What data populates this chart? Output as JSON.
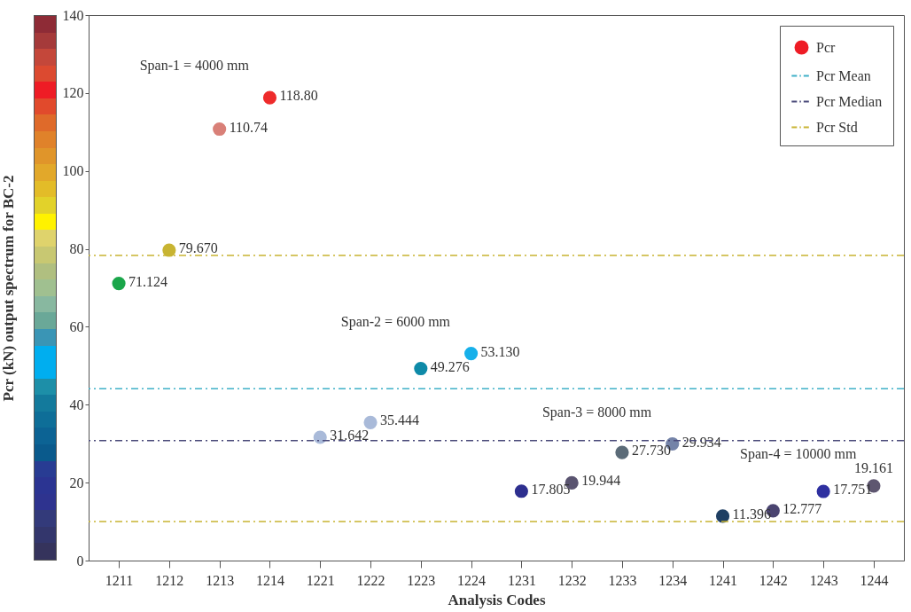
{
  "chart_data": {
    "type": "scatter",
    "xlabel": "Analysis Codes",
    "ylabel": "Pcr (kN)  output spectrum for BC-2",
    "categories": [
      "1211",
      "1212",
      "1213",
      "1214",
      "1221",
      "1222",
      "1223",
      "1224",
      "1231",
      "1232",
      "1233",
      "1234",
      "1241",
      "1242",
      "1243",
      "1244"
    ],
    "series": [
      {
        "name": "Pcr",
        "color": "#ee1c25",
        "values": [
          71.124,
          79.67,
          110.74,
          118.8,
          31.642,
          35.444,
          49.276,
          53.13,
          17.805,
          19.944,
          27.73,
          29.934,
          11.396,
          12.777,
          17.751,
          19.161
        ],
        "value_labels": [
          "71.124",
          "79.670",
          "110.74",
          "118.80",
          "31.642",
          "35.444",
          "49.276",
          "53.130",
          "17.805",
          "19.944",
          "27.730",
          "29.934",
          "11.396",
          "12.777",
          "17.751",
          "19.161"
        ],
        "colors": [
          "#1aa64a",
          "#c8b432",
          "#d98078",
          "#ee2b2b",
          "#a9bad9",
          "#a9bad9",
          "#0e8aa8",
          "#16b0ea",
          "#2d2f8f",
          "#5a5470",
          "#5b6b78",
          "#7483a8",
          "#1f3f63",
          "#4a4470",
          "#2e30a0",
          "#5e5670"
        ]
      }
    ],
    "ylim": [
      0,
      140
    ],
    "yticks": [
      0,
      20,
      40,
      60,
      80,
      100,
      120,
      140
    ],
    "marker": "circle",
    "legend": "top right",
    "ref_lines": [
      {
        "axis": "y",
        "value": 44.1,
        "label": "Pcr Mean",
        "color": "#3fb0c8",
        "line_style": "dashed"
      },
      {
        "axis": "y",
        "value": 30.8,
        "label": "Pcr Median",
        "color": "#4a4a7a",
        "line_style": "dashed"
      },
      {
        "axis": "y",
        "value": 78.3,
        "label": "Pcr Std",
        "color": "#c8b432",
        "line_style": "dashed"
      },
      {
        "axis": "y",
        "value": 10.0,
        "color": "#c8b432",
        "line_style": "dashed"
      }
    ],
    "annotations": [
      {
        "text": "Span-1 = 4000 mm",
        "x": "1214",
        "y": 118.8
      },
      {
        "text": "Span-2 = 6000 mm",
        "x": "1224",
        "y": 53.13
      },
      {
        "text": "Span-3 = 8000 mm",
        "x": "1234",
        "y": 29.934
      },
      {
        "text": "Span-4 = 10000 mm",
        "x": "1244",
        "y": 19.161
      }
    ]
  }
}
